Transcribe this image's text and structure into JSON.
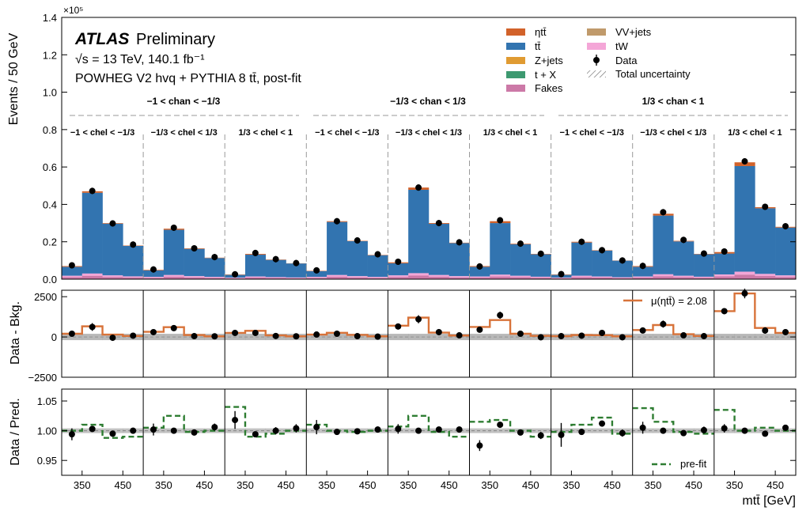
{
  "chart_data": {
    "type": "bar",
    "experiment": "ATLAS",
    "experiment_label": "Preliminary",
    "energy_label": "√s = 13 TeV, 140.1 fb⁻¹",
    "generator_label": "POWHEG V2 hvq + PYTHIA 8 tt̄, post-fit",
    "top_panel": {
      "ylabel": "Events / 50 GeV",
      "ylim": [
        0,
        1.4
      ],
      "y_exponent": "×10⁵",
      "yticks": [
        "0.0",
        "0.2",
        "0.4",
        "0.6",
        "0.8",
        "1.0",
        "1.2",
        "1.4"
      ],
      "legend": {
        "eta_tt": "ηtt̄",
        "ttbar": "tt̄",
        "zjets": "Z+jets",
        "tX": "t + X",
        "fakes": "Fakes",
        "vvjets": "VV+jets",
        "tW": "tW",
        "data": "Data",
        "unc": "Total uncertainty"
      },
      "han_labels": [
        "−1 < chan < −1/3",
        "−1/3 < chan < 1/3",
        "1/3 < chan < 1"
      ],
      "hel_labels": [
        "−1 < chel < −1/3",
        "−1/3 < chel < 1/3",
        "1/3 < chel < 1",
        "−1 < chel < −1/3",
        "−1/3 < chel < 1/3",
        "1/3 < chel < 1",
        "−1 < chel < −1/3",
        "−1/3 < chel < 1/3",
        "1/3 < chel < 1"
      ],
      "regions": [
        {
          "total": [
            0.07,
            0.47,
            0.3,
            0.18
          ],
          "eta": [
            0.004,
            0.008,
            0.003,
            0.002
          ],
          "bkg": [
            0.018,
            0.03,
            0.02,
            0.015
          ],
          "data": [
            0.074,
            0.472,
            0.298,
            0.185
          ]
        },
        {
          "total": [
            0.05,
            0.27,
            0.165,
            0.115
          ],
          "eta": [
            0.003,
            0.006,
            0.003,
            0.002
          ],
          "bkg": [
            0.012,
            0.022,
            0.016,
            0.012
          ],
          "data": [
            0.052,
            0.275,
            0.165,
            0.118
          ]
        },
        {
          "total": [
            0.025,
            0.135,
            0.105,
            0.085
          ],
          "eta": [
            0.002,
            0.004,
            0.002,
            0.001
          ],
          "bkg": [
            0.008,
            0.014,
            0.011,
            0.009
          ],
          "data": [
            0.026,
            0.14,
            0.107,
            0.086
          ]
        },
        {
          "total": [
            0.045,
            0.31,
            0.205,
            0.13
          ],
          "eta": [
            0.002,
            0.004,
            0.002,
            0.002
          ],
          "bkg": [
            0.012,
            0.022,
            0.016,
            0.012
          ],
          "data": [
            0.047,
            0.31,
            0.207,
            0.133
          ]
        },
        {
          "total": [
            0.09,
            0.49,
            0.3,
            0.195
          ],
          "eta": [
            0.005,
            0.012,
            0.004,
            0.002
          ],
          "bkg": [
            0.02,
            0.032,
            0.022,
            0.016
          ],
          "data": [
            0.093,
            0.49,
            0.3,
            0.197
          ]
        },
        {
          "total": [
            0.07,
            0.31,
            0.19,
            0.135
          ],
          "eta": [
            0.004,
            0.01,
            0.003,
            0.002
          ],
          "bkg": [
            0.014,
            0.024,
            0.018,
            0.013
          ],
          "data": [
            0.068,
            0.315,
            0.19,
            0.136
          ]
        },
        {
          "total": [
            0.025,
            0.2,
            0.155,
            0.1
          ],
          "eta": [
            0.002,
            0.004,
            0.002,
            0.001
          ],
          "bkg": [
            0.008,
            0.018,
            0.014,
            0.01
          ],
          "data": [
            0.027,
            0.2,
            0.155,
            0.1
          ]
        },
        {
          "total": [
            0.07,
            0.35,
            0.205,
            0.135
          ],
          "eta": [
            0.004,
            0.01,
            0.003,
            0.002
          ],
          "bkg": [
            0.014,
            0.026,
            0.018,
            0.013
          ],
          "data": [
            0.071,
            0.358,
            0.21,
            0.137
          ]
        },
        {
          "total": [
            0.145,
            0.625,
            0.385,
            0.28
          ],
          "eta": [
            0.008,
            0.02,
            0.006,
            0.004
          ],
          "bkg": [
            0.025,
            0.04,
            0.028,
            0.02
          ],
          "data": [
            0.148,
            0.63,
            0.387,
            0.283
          ]
        }
      ]
    },
    "mid_panel": {
      "ylabel": "Data - Bkg.",
      "ylim": [
        -2500,
        2900
      ],
      "yticks": [
        "−2500",
        "0",
        "2500"
      ],
      "mu_label": "μ(ηtt̄) = 2.08",
      "regions": [
        {
          "data": [
            200,
            620,
            -50,
            80
          ],
          "err": [
            120,
            240,
            180,
            150
          ],
          "line": [
            200,
            660,
            150,
            60
          ]
        },
        {
          "data": [
            300,
            550,
            50,
            40
          ],
          "err": [
            100,
            180,
            140,
            120
          ],
          "line": [
            320,
            610,
            120,
            40
          ]
        },
        {
          "data": [
            250,
            250,
            60,
            40
          ],
          "err": [
            90,
            140,
            120,
            110
          ],
          "line": [
            250,
            380,
            100,
            40
          ]
        },
        {
          "data": [
            150,
            200,
            50,
            20
          ],
          "err": [
            100,
            180,
            150,
            120
          ],
          "line": [
            150,
            260,
            130,
            40
          ]
        },
        {
          "data": [
            650,
            1100,
            300,
            100
          ],
          "err": [
            130,
            250,
            190,
            150
          ],
          "line": [
            700,
            1200,
            270,
            90
          ]
        },
        {
          "data": [
            450,
            1350,
            200,
            -20
          ],
          "err": [
            110,
            220,
            170,
            130
          ],
          "line": [
            620,
            1050,
            200,
            70
          ]
        },
        {
          "data": [
            50,
            80,
            250,
            -20
          ],
          "err": [
            90,
            180,
            150,
            120
          ],
          "line": [
            50,
            120,
            110,
            40
          ]
        },
        {
          "data": [
            400,
            800,
            100,
            50
          ],
          "err": [
            120,
            220,
            160,
            130
          ],
          "line": [
            430,
            740,
            170,
            60
          ]
        },
        {
          "data": [
            1600,
            2700,
            400,
            300
          ],
          "err": [
            150,
            300,
            200,
            180
          ],
          "line": [
            1600,
            2700,
            560,
            250
          ]
        }
      ]
    },
    "bottom_panel": {
      "ylabel": "Data / Pred.",
      "ylim": [
        0.925,
        1.07
      ],
      "yticks": [
        "0.95",
        "1.00",
        "1.05"
      ],
      "prefit_label": "pre-fit",
      "xlabel": "mtt̄ [GeV]",
      "xticks": [
        "350",
        "450"
      ],
      "regions": [
        {
          "data": [
            0.994,
            1.003,
            0.995,
            1.0
          ],
          "err": [
            0.01,
            0.004,
            0.004,
            0.005
          ],
          "prefit": [
            1.0,
            1.01,
            0.988,
            0.99
          ]
        },
        {
          "data": [
            1.002,
            1.0,
            0.997,
            1.006
          ],
          "err": [
            0.01,
            0.004,
            0.005,
            0.006
          ],
          "prefit": [
            1.005,
            1.025,
            0.998,
            1.0
          ]
        },
        {
          "data": [
            1.018,
            0.994,
            1.0,
            1.004
          ],
          "err": [
            0.015,
            0.004,
            0.006,
            0.007
          ],
          "prefit": [
            1.04,
            0.99,
            0.995,
            1.0
          ]
        },
        {
          "data": [
            1.006,
            0.998,
            0.999,
            1.002
          ],
          "err": [
            0.012,
            0.004,
            0.004,
            0.005
          ],
          "prefit": [
            1.01,
            1.0,
            0.998,
            1.0
          ]
        },
        {
          "data": [
            1.003,
            1.0,
            1.002,
            1.002
          ],
          "err": [
            0.008,
            0.003,
            0.004,
            0.005
          ],
          "prefit": [
            1.007,
            1.025,
            0.998,
            0.99
          ]
        },
        {
          "data": [
            0.975,
            1.01,
            0.997,
            0.992
          ],
          "err": [
            0.009,
            0.004,
            0.005,
            0.006
          ],
          "prefit": [
            1.015,
            1.018,
            1.0,
            0.99
          ]
        },
        {
          "data": [
            0.993,
            0.998,
            1.012,
            0.996
          ],
          "err": [
            0.02,
            0.005,
            0.005,
            0.006
          ],
          "prefit": [
            0.998,
            1.01,
            1.022,
            0.995
          ]
        },
        {
          "data": [
            1.005,
            1.0,
            0.996,
            1.001
          ],
          "err": [
            0.01,
            0.004,
            0.005,
            0.006
          ],
          "prefit": [
            1.038,
            1.015,
            0.998,
            0.995
          ]
        },
        {
          "data": [
            1.004,
            1.0,
            0.995,
            1.005
          ],
          "err": [
            0.007,
            0.003,
            0.004,
            0.005
          ],
          "prefit": [
            1.035,
            1.0,
            1.005,
            1.0
          ]
        }
      ]
    },
    "colors": {
      "ttbar": "#3274b0",
      "eta_tt": "#d2622a",
      "zjets": "#e09b32",
      "tX": "#3d9970",
      "fakes": "#cc79a7",
      "vvjets": "#c09a6b",
      "tW": "#f4a6d7",
      "post_fit_line": "#d8733a",
      "pre_fit_line": "#2e7d32",
      "uncertainty": "#9a9a9a"
    }
  }
}
